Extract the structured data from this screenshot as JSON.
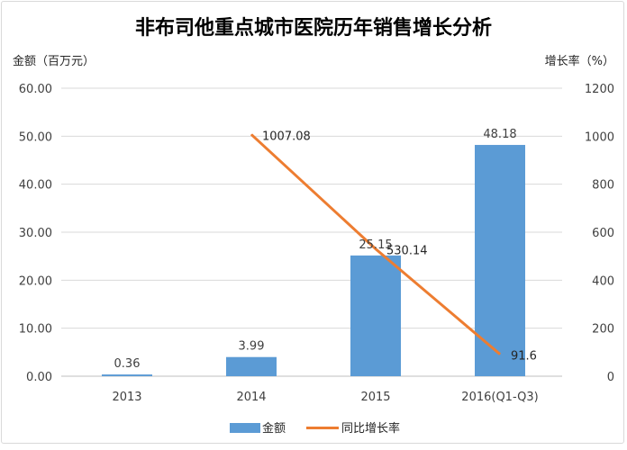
{
  "chart_data": {
    "type": "bar+line",
    "title": "非布司他重点城市医院历年销售增长分析",
    "ylabel_left": "金额（百万元）",
    "ylabel_right": "增长率（%）",
    "categories": [
      "2013",
      "2014",
      "2015",
      "2016(Q1-Q3)"
    ],
    "ylim_left": [
      0,
      60
    ],
    "ylim_right": [
      0,
      1200
    ],
    "yticks_left": [
      "0.00",
      "10.00",
      "20.00",
      "30.00",
      "40.00",
      "50.00",
      "60.00"
    ],
    "yticks_right": [
      "0",
      "200",
      "400",
      "600",
      "800",
      "1000",
      "1200"
    ],
    "grid": true,
    "legend_position": "bottom",
    "series": [
      {
        "name": "金额",
        "type": "bar",
        "axis": "left",
        "color": "#5b9bd5",
        "values": [
          0.36,
          3.99,
          25.15,
          48.18
        ],
        "labels": [
          "0.36",
          "3.99",
          "25.15",
          "48.18"
        ]
      },
      {
        "name": "同比增长率",
        "type": "line",
        "axis": "right",
        "color": "#ed7d31",
        "values": [
          null,
          1007.08,
          530.14,
          91.6
        ],
        "labels": [
          "",
          "1007.08",
          "530.14",
          "91.6"
        ]
      }
    ]
  }
}
